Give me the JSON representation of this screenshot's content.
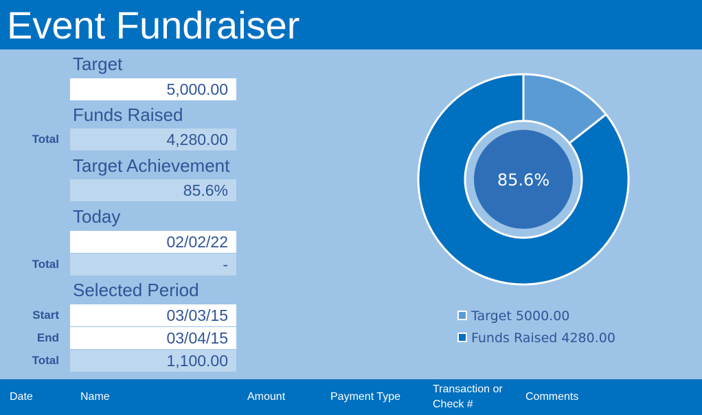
{
  "header": {
    "title": "Event Fundraiser"
  },
  "fields": {
    "target": {
      "label": "Target",
      "value": "5,000.00"
    },
    "funds_raised": {
      "label": "Funds Raised",
      "row_label": "Total",
      "value": "4,280.00"
    },
    "achievement": {
      "label": "Target Achievement",
      "value": "85.6%"
    },
    "today": {
      "label": "Today",
      "value": "02/02/22",
      "row_label": "Total",
      "total": "-"
    },
    "period": {
      "label": "Selected Period",
      "start_label": "Start",
      "start": "03/03/15",
      "end_label": "End",
      "end": "03/04/15",
      "total_label": "Total",
      "total": "1,100.00"
    }
  },
  "chart_data": {
    "type": "donut",
    "center_label": "85.6%",
    "categories": [
      "Target 5000.00",
      "Funds Raised 4280.00"
    ],
    "values": [
      720,
      4280
    ],
    "colors": [
      "#5B9BD5",
      "#0070C0"
    ]
  },
  "table": {
    "columns": [
      "Date",
      "Name",
      "Amount",
      "Payment Type",
      "Transaction or Check #",
      "Comments"
    ]
  }
}
